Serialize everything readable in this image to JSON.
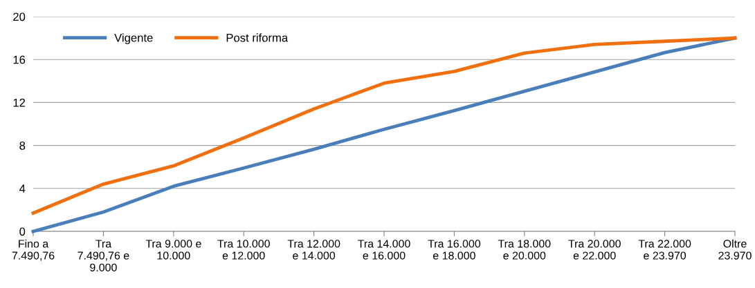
{
  "chart_data": {
    "type": "line",
    "categories": [
      "Fino a\n7.490,76",
      "Tra\n7.490,76 e\n9.000",
      "Tra 9.000 e\n10.000",
      "Tra 10.000\ne 12.000",
      "Tra 12.000\ne 14.000",
      "Tra 14.000\ne 16.000",
      "Tra 16.000\ne 18.000",
      "Tra 18.000\ne 20.000",
      "Tra 20.000\ne 22.000",
      "Tra 22.000\ne 23.970",
      "Oltre\n23.970"
    ],
    "series": [
      {
        "name": "Vigente",
        "color": "#4a7ebb",
        "values": [
          0,
          1.8,
          4.2,
          5.9,
          7.65,
          9.5,
          11.25,
          13.05,
          14.85,
          16.65,
          18.0
        ]
      },
      {
        "name": "Post riforma",
        "color": "#f07010",
        "values": [
          1.7,
          4.4,
          6.1,
          8.7,
          11.4,
          13.8,
          14.9,
          16.6,
          17.4,
          17.7,
          18.0
        ]
      }
    ],
    "ylim": [
      0,
      20
    ],
    "yticks": [
      0,
      4,
      8,
      12,
      16,
      20
    ],
    "grid": "y",
    "legend": "top left",
    "marker": "none",
    "line_style": "solid"
  }
}
